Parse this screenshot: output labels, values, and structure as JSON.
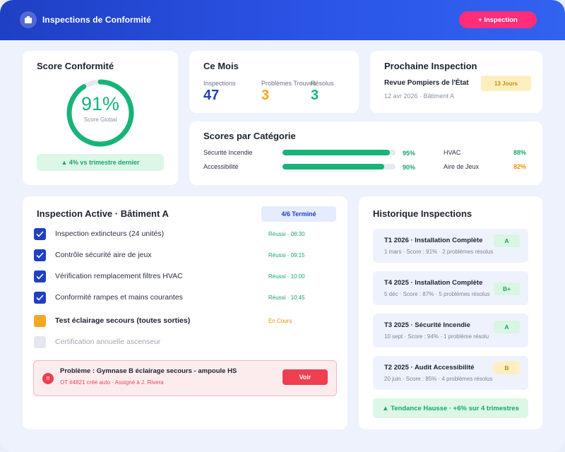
{
  "header": {
    "title": "Inspections de Conformité",
    "new_button": "+ Inspection",
    "logo_icon": "building-icon"
  },
  "score_card": {
    "title": "Score Conformité",
    "percent_label": "91%",
    "percent_value": 91,
    "subtitle": "Score Global",
    "trend": "▲ 4% vs trimestre dernier",
    "ring_color": "#17b47a"
  },
  "month_card": {
    "title": "Ce Mois",
    "stats": [
      {
        "label": "Inspections",
        "value": "47",
        "color": "#1f3fc4"
      },
      {
        "label": "Problèmes Trouvés",
        "value": "3",
        "color": "#f5a623"
      },
      {
        "label": "Résolus",
        "value": "3",
        "color": "#17b47a"
      }
    ]
  },
  "next_card": {
    "title": "Prochaine Inspection",
    "name": "Revue Pompiers de l'État",
    "meta": "12 avr 2026 · Bâtiment A",
    "badge": "13 Jours"
  },
  "categories": {
    "title": "Scores par Catégorie",
    "items": [
      {
        "label": "Sécurité Incendie",
        "value": "95%",
        "fraction": 0.95,
        "color": "#17b47a"
      },
      {
        "label": "Accessibilité",
        "value": "90%",
        "fraction": 0.9,
        "color": "#17b47a"
      },
      {
        "label": "HVAC",
        "value": "88%",
        "color": "#17b47a"
      },
      {
        "label": "Aire de Jeux",
        "value": "82%",
        "color": "#e39300"
      }
    ]
  },
  "active": {
    "title": "Inspection Active · Bâtiment A",
    "progress": "4/6 Terminé",
    "tasks": [
      {
        "label": "Inspection extincteurs (24 unités)",
        "status": "Réussi · 08:30",
        "state": "done"
      },
      {
        "label": "Contrôle sécurité aire de jeux",
        "status": "Réussi · 09:15",
        "state": "done"
      },
      {
        "label": "Vérification remplacement filtres HVAC",
        "status": "Réussi · 10:00",
        "state": "done"
      },
      {
        "label": "Conformité rampes et mains courantes",
        "status": "Réussi · 10:45",
        "state": "done"
      },
      {
        "label": "Test éclairage secours (toutes sorties)",
        "status": "En Cours",
        "state": "pending"
      },
      {
        "label": "Certification annuelle ascenseur",
        "status": "",
        "state": "todo"
      }
    ],
    "alert": {
      "icon": "!!",
      "title": "Problème : Gymnase B éclairage secours - ampoule HS",
      "sub": "OT #4821 créé auto · Assigné à J. Rivera",
      "button": "Voir"
    }
  },
  "history": {
    "title": "Historique Inspections",
    "items": [
      {
        "title": "T1 2026 · Installation Complète",
        "meta": "1 mars · Score : 91% · 2 problèmes résolus",
        "grade": "A",
        "grade_style": "green"
      },
      {
        "title": "T4 2025 · Installation Complète",
        "meta": "5 déc · Score : 87% · 5 problèmes résolus",
        "grade": "B+",
        "grade_style": "green"
      },
      {
        "title": "T3 2025 · Sécurité Incendie",
        "meta": "10 sept · Score : 94% · 1 problème résolu",
        "grade": "A",
        "grade_style": "green"
      },
      {
        "title": "T2 2025 · Audit Accessibilité",
        "meta": "20 juin · Score : 85% · 4 problèmes résolus",
        "grade": "B",
        "grade_style": "yellow"
      }
    ],
    "trend": "▲ Tendance Hausse · +6% sur 4 trimestres"
  }
}
